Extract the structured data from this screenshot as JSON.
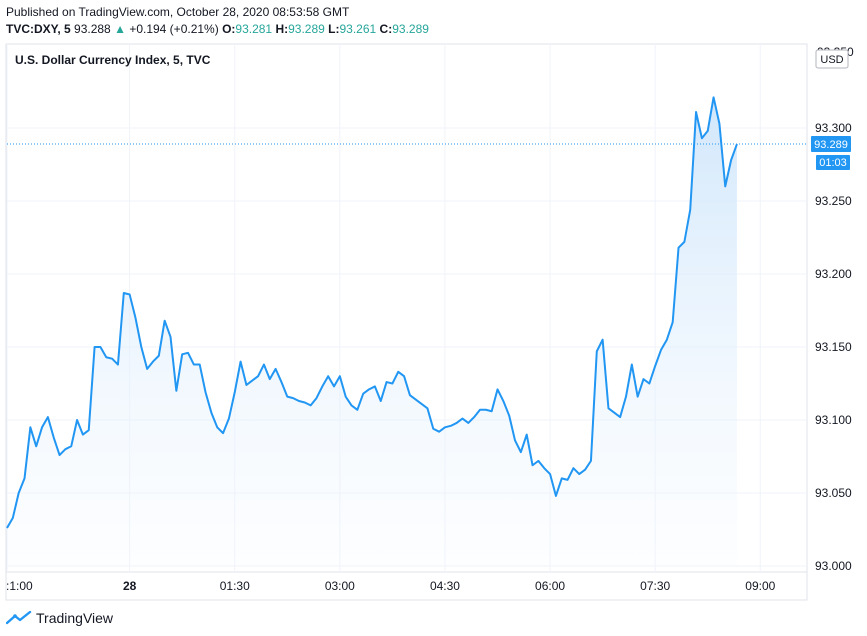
{
  "header": {
    "published": "Published on TradingView.com, October 28, 2020 08:53:58 GMT",
    "symbol": "TVC:DXY, 5",
    "last": "93.288",
    "change": "+0.194 (+0.21%)",
    "o_label": "O:",
    "o_value": "93.281",
    "h_label": "H:",
    "h_value": "93.289",
    "l_label": "L:",
    "l_value": "93.261",
    "c_label": "C:",
    "c_value": "93.289"
  },
  "footer": {
    "brand": "TradingView"
  },
  "colors": {
    "line": "#2196f3",
    "area_top": "#cfe6fb",
    "grid": "#f0f3fa",
    "price_badge": "#2196f3",
    "up": "#26a69a"
  },
  "icons": {
    "logo": "tradingview-logo-icon",
    "change_arrow": "triangle-up-icon"
  },
  "chart_data": {
    "type": "area",
    "title": "U.S. Dollar Currency Index, 5, TVC",
    "currency_label": "USD",
    "current_price": "93.289",
    "countdown": "01:03",
    "top_partial_tick": "93.350",
    "ylim": [
      93.0,
      93.35
    ],
    "yticks": [
      "93.000",
      "93.050",
      "93.100",
      "93.150",
      "93.200",
      "93.250",
      "93.300"
    ],
    "xticks": [
      {
        "label": ":1:00",
        "i": 0
      },
      {
        "label": "28",
        "i": 21,
        "bold": true
      },
      {
        "label": "01:30",
        "i": 39
      },
      {
        "label": "03:00",
        "i": 57
      },
      {
        "label": "04:30",
        "i": 75
      },
      {
        "label": "06:00",
        "i": 93
      },
      {
        "label": "07:30",
        "i": 111
      },
      {
        "label": "09:00",
        "i": 129
      }
    ],
    "x_total": 137,
    "values": [
      93.026,
      93.033,
      93.05,
      93.06,
      93.095,
      93.082,
      93.095,
      93.102,
      93.088,
      93.076,
      93.08,
      93.082,
      93.1,
      93.09,
      93.093,
      93.15,
      93.15,
      93.143,
      93.142,
      93.138,
      93.187,
      93.186,
      93.17,
      93.15,
      93.135,
      93.14,
      93.144,
      93.168,
      93.157,
      93.12,
      93.145,
      93.146,
      93.138,
      93.138,
      93.119,
      93.105,
      93.095,
      93.091,
      93.101,
      93.119,
      93.14,
      93.124,
      93.127,
      93.13,
      93.138,
      93.128,
      93.135,
      93.126,
      93.116,
      93.115,
      93.113,
      93.112,
      93.11,
      93.115,
      93.123,
      93.13,
      93.123,
      93.13,
      93.116,
      93.11,
      93.107,
      93.118,
      93.121,
      93.123,
      93.113,
      93.126,
      93.125,
      93.133,
      93.13,
      93.117,
      93.114,
      93.111,
      93.108,
      93.094,
      93.092,
      93.095,
      93.096,
      93.098,
      93.101,
      93.098,
      93.102,
      93.107,
      93.107,
      93.106,
      93.121,
      93.113,
      93.103,
      93.086,
      93.078,
      93.09,
      93.069,
      93.072,
      93.067,
      93.063,
      93.048,
      93.06,
      93.059,
      93.067,
      93.063,
      93.066,
      93.072,
      93.147,
      93.155,
      93.108,
      93.105,
      93.102,
      93.116,
      93.138,
      93.116,
      93.128,
      93.125,
      93.137,
      93.148,
      93.155,
      93.167,
      93.218,
      93.222,
      93.244,
      93.311,
      93.293,
      93.298,
      93.321,
      93.303,
      93.26,
      93.278,
      93.289
    ]
  }
}
